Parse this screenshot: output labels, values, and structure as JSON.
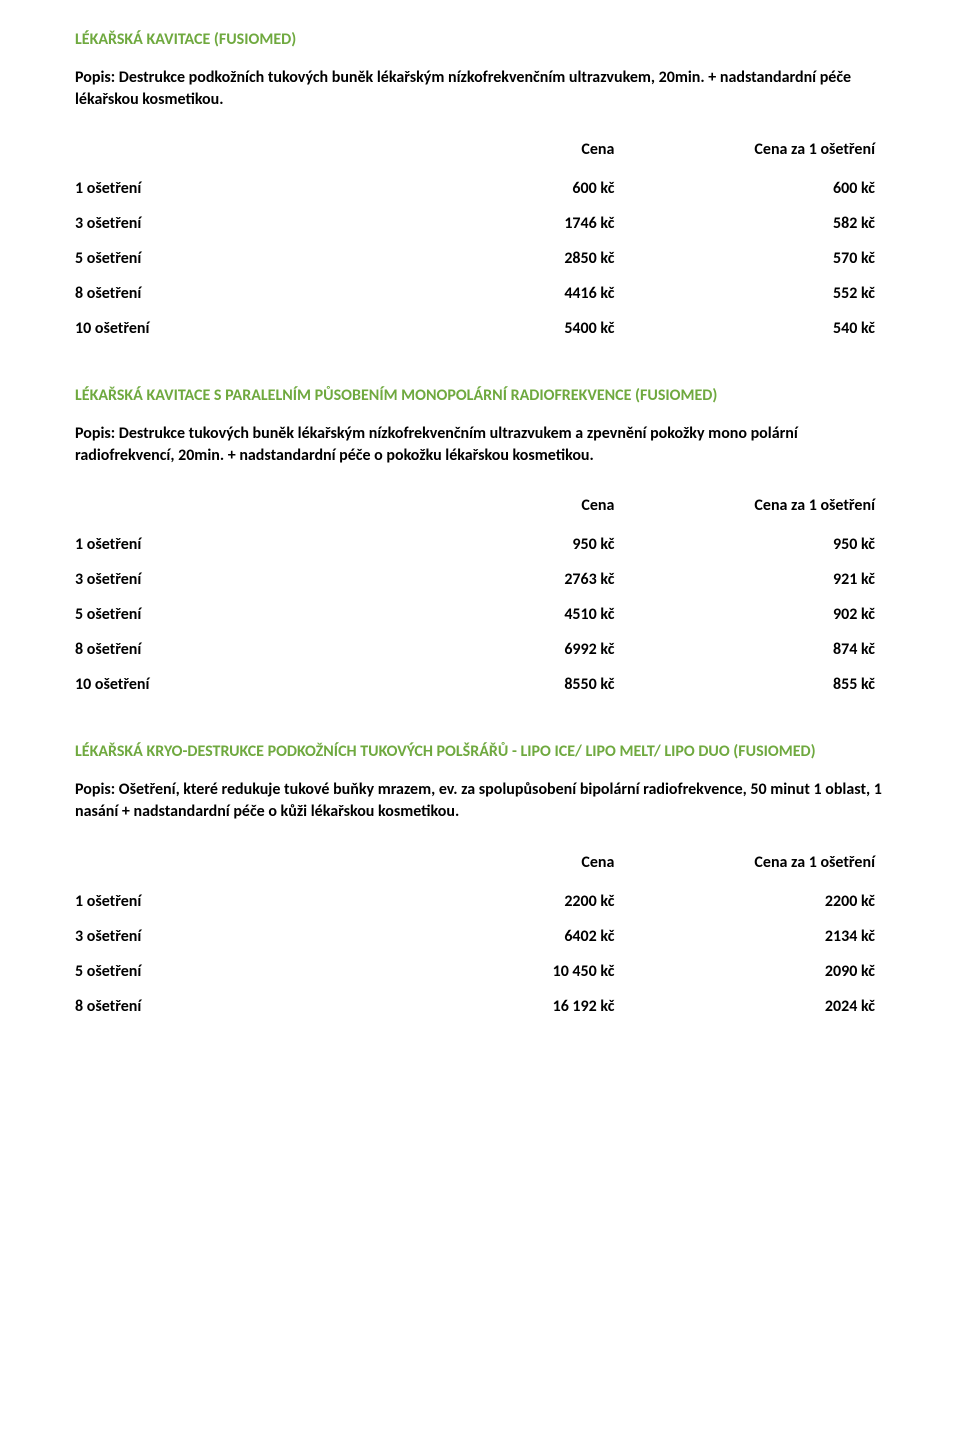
{
  "text_color": "#000000",
  "title_color": "#6fa93f",
  "background_color": "#ffffff",
  "font_family": "Calibri, Arial, sans-serif",
  "base_font_size": 16,
  "sections": [
    {
      "title": "LÉKAŘSKÁ KAVITACE (FUSIOMED)",
      "description": "Popis: Destrukce podkožních tukových buněk lékařským nízkofrekvenčním ultrazvukem, 20min. + nadstandardní péče lékařskou kosmetikou.",
      "header_price": "Cena",
      "header_unit": "Cena za 1 ošetření",
      "rows": [
        {
          "label": "1 ošetření",
          "price": "600 kč",
          "unit": "600 kč"
        },
        {
          "label": "3 ošetření",
          "price": "1746 kč",
          "unit": "582 kč"
        },
        {
          "label": "5 ošetření",
          "price": "2850 kč",
          "unit": "570 kč"
        },
        {
          "label": "8 ošetření",
          "price": "4416 kč",
          "unit": "552 kč"
        },
        {
          "label": "10 ošetření",
          "price": "5400 kč",
          "unit": "540 kč"
        }
      ]
    },
    {
      "title": "LÉKAŘSKÁ KAVITACE S PARALELNÍM PŮSOBENÍM MONOPOLÁRNÍ RADIOFREKVENCE (FUSIOMED)",
      "description": "Popis: Destrukce tukových buněk lékařským nízkofrekvenčním ultrazvukem a zpevnění pokožky mono polární radiofrekvencí, 20min. + nadstandardní péče o pokožku lékařskou kosmetikou.",
      "header_price": "Cena",
      "header_unit": "Cena za 1 ošetření",
      "rows": [
        {
          "label": "1 ošetření",
          "price": "950 kč",
          "unit": "950 kč"
        },
        {
          "label": "3 ošetření",
          "price": "2763 kč",
          "unit": "921 kč"
        },
        {
          "label": "5 ošetření",
          "price": "4510 kč",
          "unit": "902 kč"
        },
        {
          "label": "8 ošetření",
          "price": "6992 kč",
          "unit": "874 kč"
        },
        {
          "label": "10 ošetření",
          "price": "8550 kč",
          "unit": "855 kč"
        }
      ]
    },
    {
      "title": "LÉKAŘSKÁ KRYO-DESTRUKCE PODKOŽNÍCH TUKOVÝCH POLŠRÁŘŮ - LIPO ICE/ LIPO MELT/ LIPO DUO (FUSIOMED)",
      "description": "Popis: Ošetření, které redukuje tukové buňky mrazem, ev. za spolupůsobení bipolární radiofrekvence, 50 minut 1 oblast, 1 nasání + nadstandardní péče o kůži lékařskou kosmetikou.",
      "header_price": "Cena",
      "header_unit": "Cena za 1 ošetření",
      "rows": [
        {
          "label": "1 ošetření",
          "price": "2200 kč",
          "unit": "2200 kč"
        },
        {
          "label": "3 ošetření",
          "price": "6402 kč",
          "unit": "2134 kč"
        },
        {
          "label": "5 ošetření",
          "price": "10 450 kč",
          "unit": "2090 kč"
        },
        {
          "label": "8 ošetření",
          "price": "16 192 kč",
          "unit": "2024 kč"
        }
      ]
    }
  ]
}
